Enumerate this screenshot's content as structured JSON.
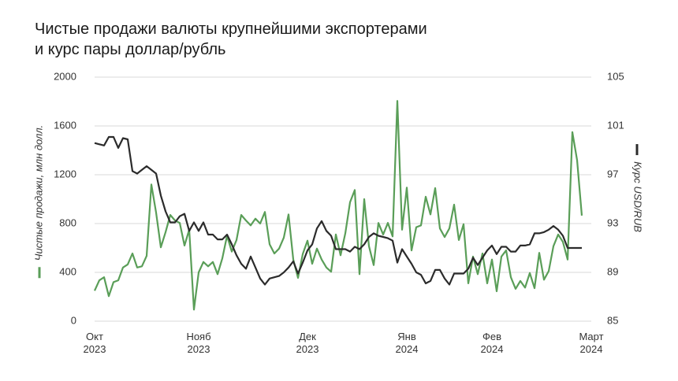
{
  "chart_data": {
    "type": "line",
    "title": "Чистые продажи валюты крупнейшими экспортерами\nи курс пары доллар/рубль",
    "categories": [
      "Окт\n2023",
      null,
      null,
      null,
      null,
      null,
      null,
      null,
      null,
      null,
      null,
      null,
      null,
      null,
      null,
      null,
      null,
      null,
      null,
      null,
      null,
      null,
      "Нояб\n2023",
      null,
      null,
      null,
      null,
      null,
      null,
      null,
      null,
      null,
      null,
      null,
      null,
      null,
      null,
      null,
      null,
      null,
      null,
      null,
      null,
      null,
      null,
      "Дек\n2023",
      null,
      null,
      null,
      null,
      null,
      null,
      null,
      null,
      null,
      null,
      null,
      null,
      null,
      null,
      null,
      null,
      null,
      null,
      null,
      null,
      "Янв\n2024",
      null,
      null,
      null,
      null,
      null,
      null,
      null,
      null,
      null,
      null,
      null,
      null,
      null,
      null,
      null,
      null,
      null,
      "Фев\n2024",
      null,
      null,
      null,
      null,
      null,
      null,
      null,
      null,
      null,
      null,
      null,
      null,
      null,
      null,
      null,
      null,
      null,
      null,
      null,
      null,
      "Март\n2024"
    ],
    "series": [
      {
        "name": "Чистые продажи, млн долл.",
        "color": "#5a9e58",
        "values": [
          250,
          335,
          360,
          205,
          320,
          335,
          440,
          465,
          555,
          440,
          450,
          535,
          1120,
          890,
          605,
          730,
          870,
          825,
          805,
          620,
          750,
          95,
          400,
          485,
          450,
          485,
          385,
          515,
          700,
          570,
          665,
          870,
          825,
          785,
          840,
          800,
          895,
          630,
          555,
          595,
          685,
          875,
          505,
          355,
          550,
          660,
          470,
          595,
          505,
          440,
          405,
          710,
          540,
          720,
          975,
          1075,
          385,
          1000,
          615,
          460,
          805,
          710,
          805,
          695,
          1805,
          750,
          1095,
          580,
          770,
          785,
          1020,
          875,
          1090,
          760,
          690,
          760,
          955,
          665,
          795,
          310,
          530,
          385,
          555,
          310,
          505,
          245,
          530,
          580,
          360,
          265,
          330,
          275,
          395,
          270,
          560,
          340,
          410,
          615,
          710,
          650,
          505,
          1550,
          1320,
          865,
          null,
          null
        ]
      },
      {
        "name": "Курс USD/RUB",
        "color": "#2b2b2b",
        "axis": "y2",
        "values": [
          99.6,
          99.5,
          99.4,
          100.1,
          100.1,
          99.2,
          100.0,
          99.9,
          97.3,
          97.1,
          97.4,
          97.7,
          97.4,
          97.1,
          95.3,
          94.0,
          93.1,
          93.1,
          93.6,
          93.8,
          92.4,
          93.1,
          92.4,
          93.1,
          92.1,
          92.1,
          91.7,
          91.7,
          92.1,
          91.3,
          90.4,
          89.7,
          89.3,
          90.3,
          89.4,
          88.5,
          88.0,
          88.5,
          88.6,
          88.7,
          89.0,
          89.4,
          89.9,
          88.9,
          89.8,
          90.8,
          91.3,
          92.6,
          93.2,
          92.4,
          92.0,
          90.9,
          90.9,
          90.9,
          90.7,
          91.1,
          90.9,
          91.3,
          91.9,
          92.2,
          92.0,
          91.9,
          91.8,
          91.6,
          89.8,
          90.9,
          90.3,
          89.7,
          89.0,
          88.8,
          88.1,
          88.3,
          89.2,
          89.2,
          88.5,
          88.0,
          88.9,
          88.9,
          88.9,
          89.3,
          90.2,
          89.6,
          90.2,
          90.8,
          91.2,
          90.5,
          91.1,
          91.1,
          90.7,
          90.7,
          91.2,
          91.2,
          91.3,
          92.2,
          92.2,
          92.3,
          92.5,
          92.8,
          92.5,
          92.0,
          91.0,
          91.0,
          91.0,
          91.0,
          null,
          null
        ]
      }
    ],
    "ylim": [
      0,
      2000
    ],
    "yticks": [
      0,
      400,
      800,
      1200,
      1600,
      2000
    ],
    "y2lim": [
      85,
      105
    ],
    "y2ticks": [
      85,
      89,
      93,
      97,
      101,
      105
    ],
    "grid": true
  }
}
